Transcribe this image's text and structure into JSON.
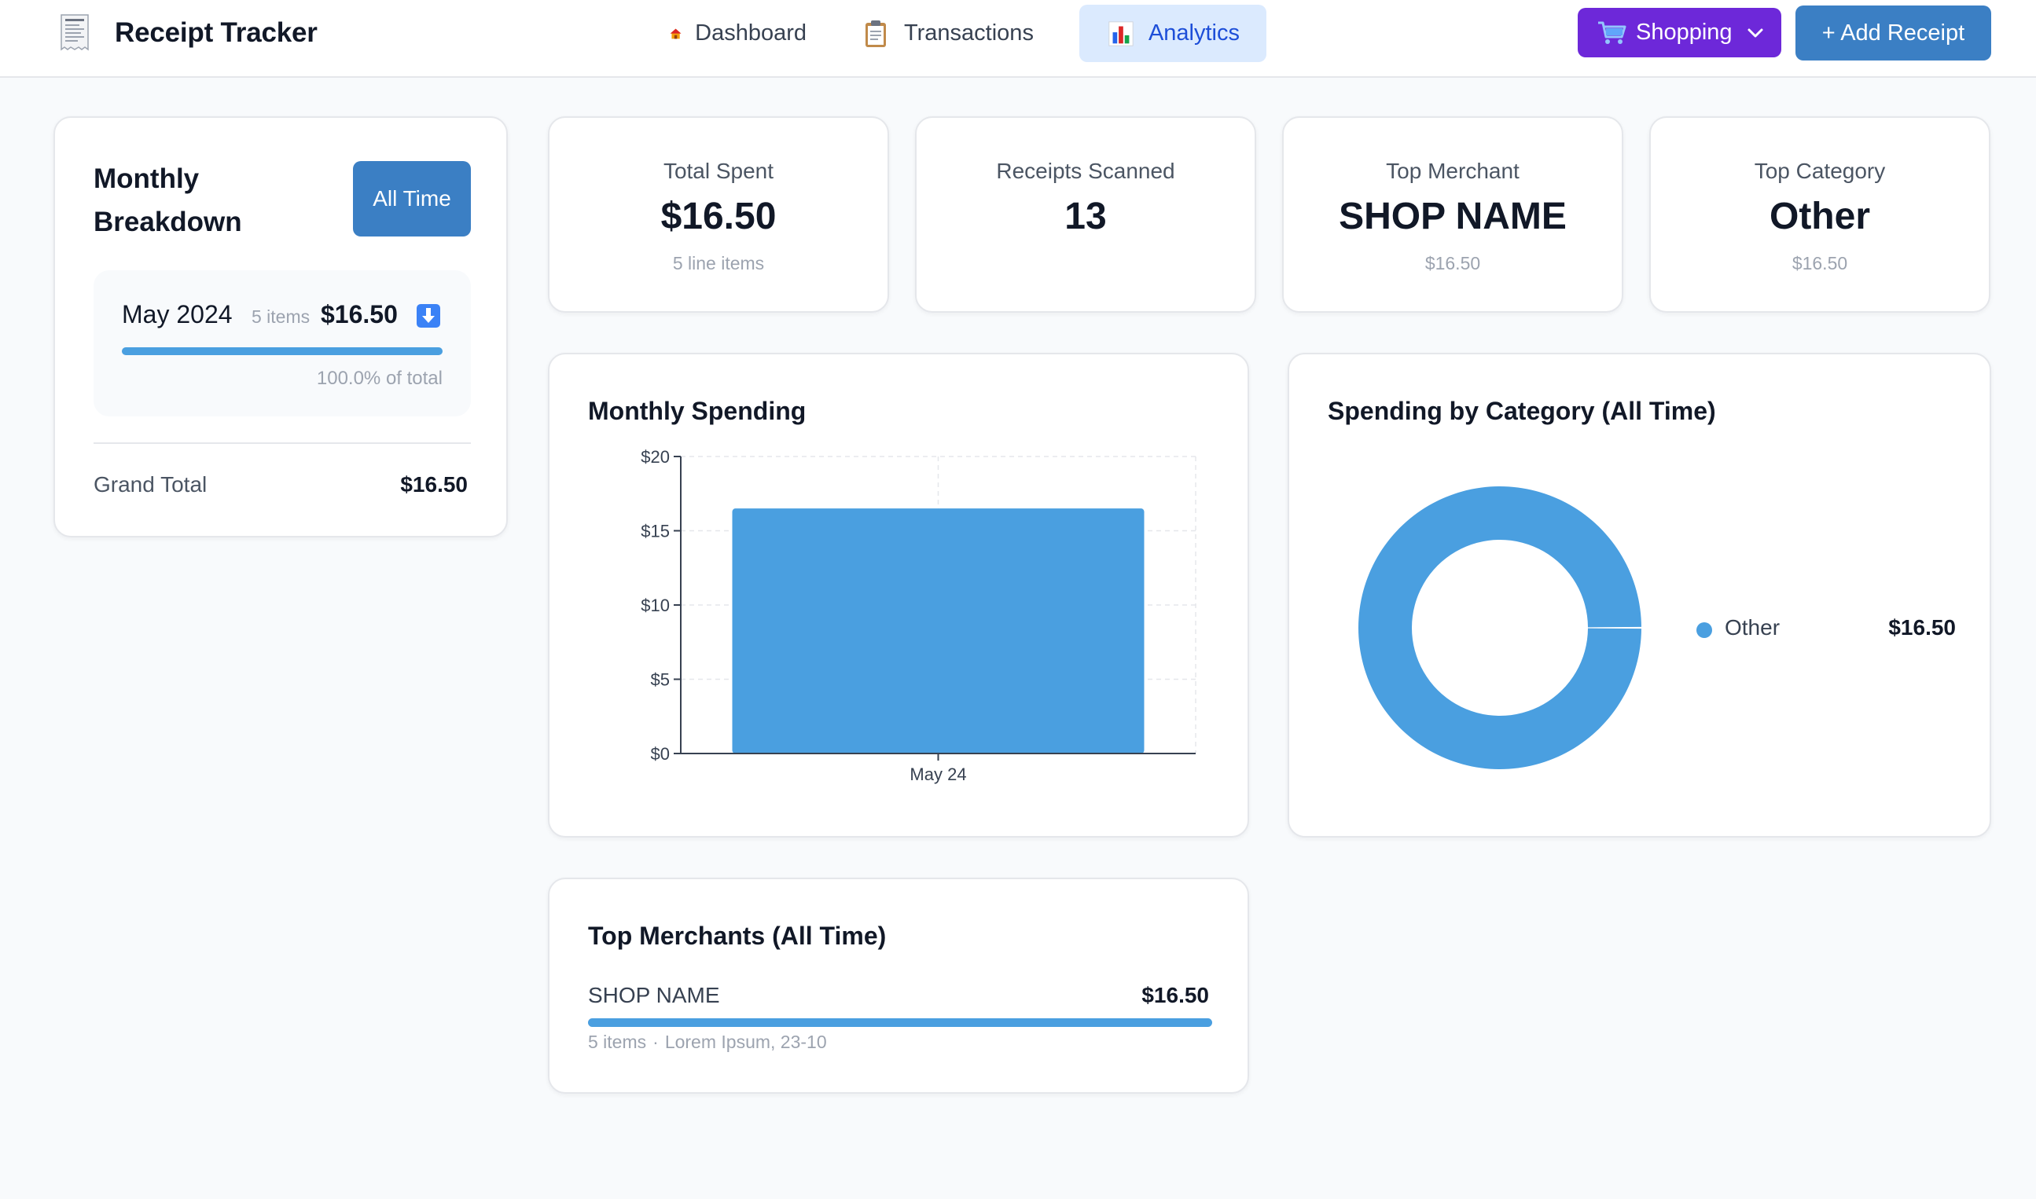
{
  "header": {
    "app_title": "Receipt Tracker",
    "app_icon": "receipt-icon",
    "tabs": [
      {
        "label": "Dashboard",
        "icon": "house-icon",
        "active": false
      },
      {
        "label": "Transactions",
        "icon": "clipboard-icon",
        "active": false
      },
      {
        "label": "Analytics",
        "icon": "bar-chart-icon",
        "active": true
      }
    ],
    "shopping_label": "Shopping",
    "add_receipt_label": "+ Add Receipt"
  },
  "monthly_breakdown": {
    "title": "Monthly Breakdown",
    "filter_label": "All Time",
    "months": [
      {
        "label": "May 2024",
        "items": "5 items",
        "amount": "$16.50",
        "percent": 100.0,
        "percent_label": "100.0% of total"
      }
    ],
    "grand_total_label": "Grand Total",
    "grand_total_value": "$16.50"
  },
  "stats": [
    {
      "label": "Total Spent",
      "value": "$16.50",
      "sub": "5 line items"
    },
    {
      "label": "Receipts Scanned",
      "value": "13",
      "sub": ""
    },
    {
      "label": "Top Merchant",
      "value": "SHOP NAME",
      "sub": "$16.50"
    },
    {
      "label": "Top Category",
      "value": "Other",
      "sub": "$16.50"
    }
  ],
  "monthly_spending": {
    "title": "Monthly Spending"
  },
  "category_spending": {
    "title": "Spending by Category (All Time)"
  },
  "top_merchants": {
    "title": "Top Merchants (All Time)",
    "items": [
      {
        "name": "SHOP NAME",
        "amount": "$16.50",
        "items": "5 items",
        "location": "Lorem Ipsum, 23-10",
        "share": 1.0
      }
    ]
  },
  "colors": {
    "accent": "#3b7fc4",
    "chart_blue": "#4a9fe0",
    "shopping_purple": "#6d28d9",
    "active_tab_bg": "#dbeafe"
  },
  "chart_data": [
    {
      "type": "bar",
      "title": "Monthly Spending",
      "categories": [
        "May 24"
      ],
      "values": [
        16.5
      ],
      "ylim": [
        0,
        20
      ],
      "yticks": [
        0,
        5,
        10,
        15,
        20
      ],
      "ytick_labels": [
        "$0",
        "$5",
        "$10",
        "$15",
        "$20"
      ],
      "grid": true
    },
    {
      "type": "pie",
      "title": "Spending by Category (All Time)",
      "donut": true,
      "slices": [
        {
          "label": "Other",
          "value": 16.5,
          "display": "$16.50",
          "color": "#4a9fe0"
        }
      ],
      "legend": "right"
    }
  ]
}
